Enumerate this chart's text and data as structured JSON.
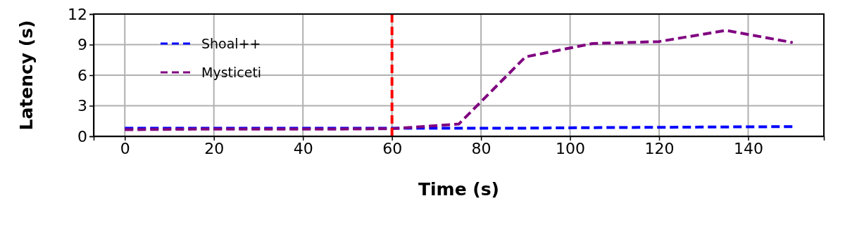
{
  "chart_data": {
    "type": "line",
    "xlabel": "Time (s)",
    "ylabel": "Latency (s)",
    "xlim": [
      -7,
      157
    ],
    "xticks": [
      0,
      20,
      40,
      60,
      80,
      100,
      120,
      140
    ],
    "ylim": [
      0,
      12
    ],
    "yticks": [
      0,
      3,
      6,
      9,
      12
    ],
    "grid": true,
    "legend": "top left",
    "line_style": "dashed",
    "marker": "none",
    "x": [
      0,
      15,
      30,
      45,
      60,
      75,
      90,
      105,
      120,
      135,
      150
    ],
    "series": [
      {
        "name": "Shoal++",
        "color": "#0000ff",
        "values": [
          0.8,
          0.8,
          0.8,
          0.8,
          0.8,
          0.8,
          0.8,
          0.85,
          0.88,
          0.92,
          0.95
        ]
      },
      {
        "name": "Mysticeti",
        "color": "#800080",
        "values": [
          0.65,
          0.7,
          0.7,
          0.7,
          0.75,
          1.2,
          7.8,
          9.1,
          9.3,
          10.4,
          9.2
        ]
      }
    ],
    "ref_lines": [
      {
        "axis": "x",
        "value": 60,
        "color": "#ff0000",
        "line_style": "dashed"
      }
    ]
  }
}
